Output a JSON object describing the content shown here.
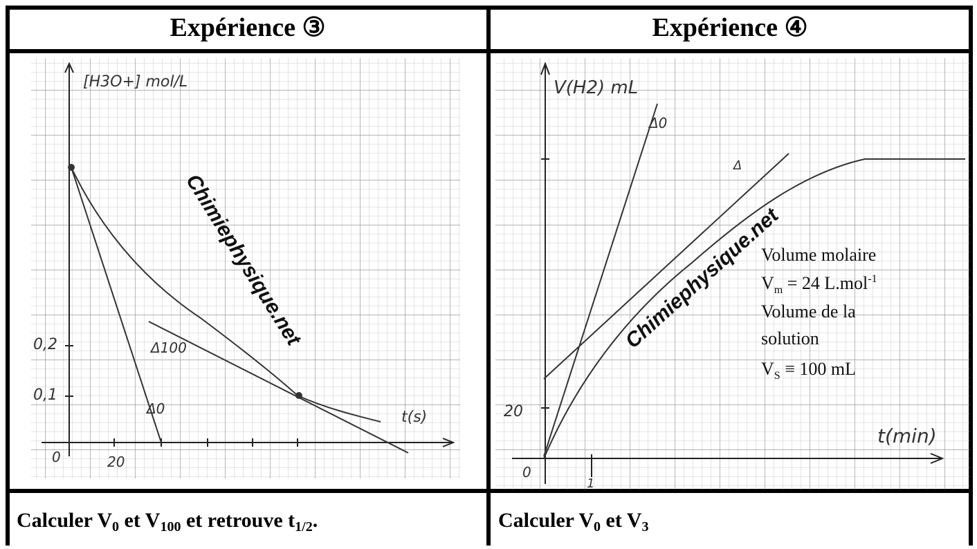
{
  "cells": [
    {
      "title": "Expérience ③",
      "graph": {
        "y_label": "[H3O+] mol/L",
        "y_ticks": [
          "0,2",
          "0,1"
        ],
        "origin": "0",
        "x_ticks": [
          "20"
        ],
        "x_label": "t(s)",
        "tangents": [
          "Δ100",
          "Δ0"
        ],
        "watermark": "Chimiephysique.net"
      },
      "question": [
        {
          "text": "Calculer V"
        },
        {
          "sub": "0"
        },
        {
          "text": " et V"
        },
        {
          "sub": "100"
        },
        {
          "text": " et retrouve t"
        },
        {
          "sub": "1/2"
        },
        {
          "text": "."
        }
      ]
    },
    {
      "title": "Expérience ④",
      "graph": {
        "y_label": "V(H2) mL",
        "y_ticks": [
          "20"
        ],
        "origin": "0",
        "x_ticks": [
          "1"
        ],
        "x_label": "t(min)",
        "tangents": [
          "Δ0",
          "Δ"
        ],
        "watermark": "Chimiephysique.net",
        "note": {
          "line1": "Volume molaire",
          "vm": {
            "text": "V",
            "sub": "m",
            "value": " = 24 L.mol",
            "sup": "-1"
          },
          "line3": "Volume de la",
          "line4": "solution",
          "vs": {
            "text": "V",
            "sub": "S",
            "value": " ≡ 100 mL"
          }
        }
      },
      "question": [
        {
          "text": "Calculer V"
        },
        {
          "sub": "0"
        },
        {
          "text": " et V"
        },
        {
          "sub": "3"
        }
      ]
    }
  ]
}
